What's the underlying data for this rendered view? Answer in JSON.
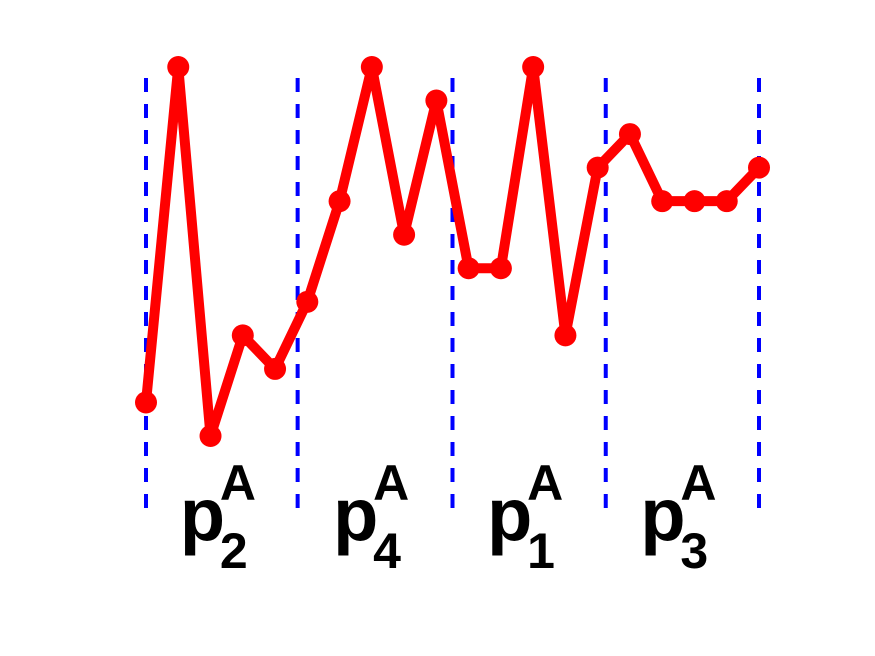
{
  "chart_data": {
    "type": "line",
    "x": [
      0,
      1,
      2,
      3,
      4,
      5,
      6,
      7,
      8,
      9,
      10,
      11,
      12,
      13,
      14,
      15,
      16,
      17,
      18,
      19
    ],
    "series": [
      {
        "color": "#ff0000",
        "values": [
          1,
          11,
          0,
          3,
          2,
          4,
          7,
          11,
          6,
          10,
          5,
          5,
          11,
          3,
          8,
          9,
          7,
          7,
          7,
          8
        ]
      }
    ],
    "xlim": [
      0,
      19
    ],
    "ylim": [
      0,
      11
    ],
    "dividers": {
      "color": "#0000ff",
      "x": [
        0,
        4.7,
        9.5,
        14.25,
        19
      ]
    },
    "segment_labels": [
      {
        "base": "p",
        "sub": "2",
        "sup": "A"
      },
      {
        "base": "p",
        "sub": "4",
        "sup": "A"
      },
      {
        "base": "p",
        "sub": "1",
        "sup": "A"
      },
      {
        "base": "p",
        "sub": "3",
        "sup": "A"
      }
    ]
  }
}
